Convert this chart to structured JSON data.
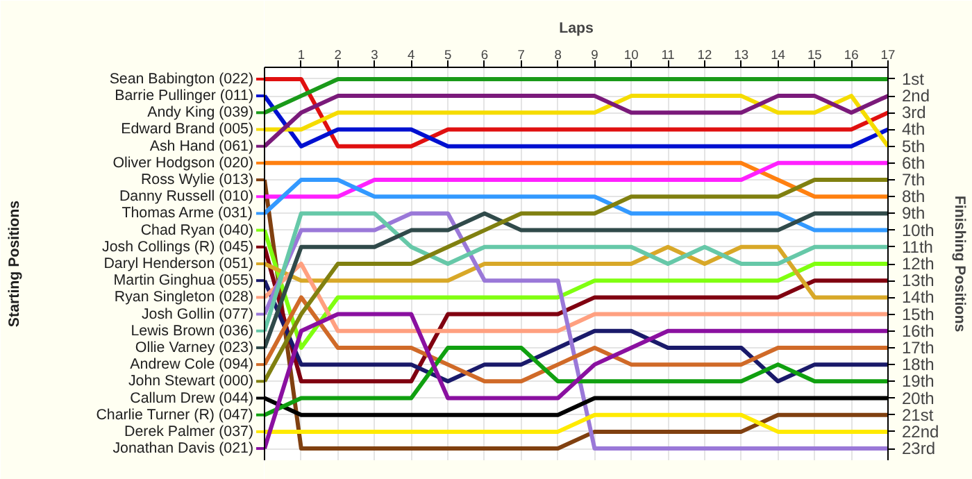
{
  "chart_data": {
    "type": "line",
    "xlabel": "Laps",
    "ylabel": "Finishing Positions",
    "annotations": [
      "Starting Positions"
    ],
    "x": [
      0,
      1,
      2,
      3,
      4,
      5,
      6,
      7,
      8,
      9,
      10,
      11,
      12,
      13,
      14,
      15,
      16,
      17
    ],
    "xlim": [
      0,
      17
    ],
    "xticks": [
      1,
      2,
      3,
      4,
      5,
      6,
      7,
      8,
      9,
      10,
      11,
      12,
      13,
      14,
      15,
      16,
      17
    ],
    "ylim": [
      23.7,
      0.3
    ],
    "yticks": [
      {
        "value": 1,
        "label": "1st"
      },
      {
        "value": 2,
        "label": "2nd"
      },
      {
        "value": 3,
        "label": "3rd"
      },
      {
        "value": 4,
        "label": "4th"
      },
      {
        "value": 5,
        "label": "5th"
      },
      {
        "value": 6,
        "label": "6th"
      },
      {
        "value": 7,
        "label": "7th"
      },
      {
        "value": 8,
        "label": "8th"
      },
      {
        "value": 9,
        "label": "9th"
      },
      {
        "value": 10,
        "label": "10th"
      },
      {
        "value": 11,
        "label": "11th"
      },
      {
        "value": 12,
        "label": "12th"
      },
      {
        "value": 13,
        "label": "13th"
      },
      {
        "value": 14,
        "label": "14th"
      },
      {
        "value": 15,
        "label": "15th"
      },
      {
        "value": 16,
        "label": "16th"
      },
      {
        "value": 17,
        "label": "17th"
      },
      {
        "value": 18,
        "label": "18th"
      },
      {
        "value": 19,
        "label": "19th"
      },
      {
        "value": 20,
        "label": "20th"
      },
      {
        "value": 21,
        "label": "21st"
      },
      {
        "value": 22,
        "label": "22nd"
      },
      {
        "value": 23,
        "label": "23rd"
      }
    ],
    "grid": true,
    "legend": "left",
    "marker": "none",
    "line_style": "solid",
    "series": [
      {
        "name": "Sean Babington (022)",
        "color": "#e01010",
        "values": [
          1,
          1,
          5,
          5,
          5,
          4,
          4,
          4,
          4,
          4,
          4,
          4,
          4,
          4,
          4,
          4,
          4,
          3
        ]
      },
      {
        "name": "Barrie Pullinger (011)",
        "color": "#0010d0",
        "values": [
          2,
          5,
          4,
          4,
          4,
          5,
          5,
          5,
          5,
          5,
          5,
          5,
          5,
          5,
          5,
          5,
          5,
          4
        ]
      },
      {
        "name": "Andy King (039)",
        "color": "#1a9a1a",
        "values": [
          3,
          2,
          1,
          1,
          1,
          1,
          1,
          1,
          1,
          1,
          1,
          1,
          1,
          1,
          1,
          1,
          1,
          1
        ]
      },
      {
        "name": "Edward Brand (005)",
        "color": "#f5dc00",
        "values": [
          4,
          4,
          3,
          3,
          3,
          3,
          3,
          3,
          3,
          3,
          2,
          2,
          2,
          2,
          3,
          3,
          2,
          5
        ]
      },
      {
        "name": "Ash Hand (061)",
        "color": "#7a1a7a",
        "values": [
          5,
          3,
          2,
          2,
          2,
          2,
          2,
          2,
          2,
          2,
          3,
          3,
          3,
          3,
          2,
          2,
          3,
          2
        ]
      },
      {
        "name": "Oliver Hodgson (020)",
        "color": "#ff8010",
        "values": [
          6,
          6,
          6,
          6,
          6,
          6,
          6,
          6,
          6,
          6,
          6,
          6,
          6,
          6,
          7,
          8,
          8,
          8
        ]
      },
      {
        "name": "Ross Wylie (013)",
        "color": "#804010",
        "values": [
          7,
          23,
          23,
          23,
          23,
          23,
          23,
          23,
          23,
          22,
          22,
          22,
          22,
          22,
          21,
          21,
          21,
          21
        ]
      },
      {
        "name": "Danny Russell (010)",
        "color": "#ff20ff",
        "values": [
          8,
          8,
          8,
          7,
          7,
          7,
          7,
          7,
          7,
          7,
          7,
          7,
          7,
          7,
          6,
          6,
          6,
          6
        ]
      },
      {
        "name": "Thomas Arme (031)",
        "color": "#3399ff",
        "values": [
          9,
          7,
          7,
          8,
          8,
          8,
          8,
          8,
          8,
          8,
          9,
          9,
          9,
          9,
          9,
          10,
          10,
          10
        ]
      },
      {
        "name": "Chad Ryan (040)",
        "color": "#80ff10",
        "values": [
          10,
          17,
          14,
          14,
          14,
          14,
          14,
          14,
          14,
          13,
          13,
          13,
          13,
          13,
          13,
          12,
          12,
          12
        ]
      },
      {
        "name": "Josh Collings (R) (045)",
        "color": "#800010",
        "values": [
          11,
          19,
          19,
          19,
          19,
          15,
          15,
          15,
          15,
          14,
          14,
          14,
          14,
          14,
          14,
          13,
          13,
          13
        ]
      },
      {
        "name": "Daryl Henderson (051)",
        "color": "#d8a828",
        "values": [
          12,
          13,
          13,
          13,
          13,
          13,
          12,
          12,
          12,
          12,
          12,
          11,
          12,
          11,
          11,
          14,
          14,
          14
        ]
      },
      {
        "name": "Martin Ginghua (055)",
        "color": "#1a1a6a",
        "values": [
          13,
          18,
          18,
          18,
          18,
          19,
          18,
          18,
          17,
          16,
          16,
          17,
          17,
          17,
          19,
          18,
          18,
          18
        ]
      },
      {
        "name": "Ryan Singleton (028)",
        "color": "#ffa080",
        "values": [
          14,
          12,
          16,
          16,
          16,
          16,
          16,
          16,
          16,
          15,
          15,
          15,
          15,
          15,
          15,
          15,
          15,
          15
        ]
      },
      {
        "name": "Josh Gollin (077)",
        "color": "#9a78d8",
        "values": [
          15,
          10,
          10,
          10,
          9,
          9,
          13,
          13,
          13,
          23,
          23,
          23,
          23,
          23,
          23,
          23,
          23,
          23
        ]
      },
      {
        "name": "Lewis Brown (036)",
        "color": "#66c8a8",
        "values": [
          16,
          9,
          9,
          9,
          11,
          12,
          11,
          11,
          11,
          11,
          11,
          12,
          11,
          12,
          12,
          11,
          11,
          11
        ]
      },
      {
        "name": "Ollie Varney (023)",
        "color": "#304a4a",
        "values": [
          17,
          11,
          11,
          11,
          10,
          10,
          9,
          10,
          10,
          10,
          10,
          10,
          10,
          10,
          10,
          9,
          9,
          9
        ]
      },
      {
        "name": "Andrew Cole (094)",
        "color": "#d06a28",
        "values": [
          18,
          14,
          17,
          17,
          17,
          18,
          19,
          19,
          18,
          17,
          18,
          18,
          18,
          18,
          17,
          17,
          17,
          17
        ]
      },
      {
        "name": "John Stewart (000)",
        "color": "#808010",
        "values": [
          19,
          15,
          12,
          12,
          12,
          11,
          10,
          9,
          9,
          9,
          8,
          8,
          8,
          8,
          8,
          7,
          7,
          7
        ]
      },
      {
        "name": "Callum Drew (044)",
        "color": "#000000",
        "values": [
          20,
          21,
          21,
          21,
          21,
          21,
          21,
          21,
          21,
          20,
          20,
          20,
          20,
          20,
          20,
          20,
          20,
          20
        ]
      },
      {
        "name": "Charlie Turner (R) (047)",
        "color": "#10a010",
        "values": [
          21,
          20,
          20,
          20,
          20,
          17,
          17,
          17,
          19,
          19,
          19,
          19,
          19,
          19,
          18,
          19,
          19,
          19
        ]
      },
      {
        "name": "Derek Palmer (037)",
        "color": "#ffea00",
        "values": [
          22,
          22,
          22,
          22,
          22,
          22,
          22,
          22,
          22,
          21,
          21,
          21,
          21,
          21,
          22,
          22,
          22,
          22
        ]
      },
      {
        "name": "Jonathan Davis (021)",
        "color": "#8a10a0",
        "values": [
          23,
          16,
          15,
          15,
          15,
          20,
          20,
          20,
          20,
          18,
          17,
          16,
          16,
          16,
          16,
          16,
          16,
          16
        ]
      }
    ]
  }
}
